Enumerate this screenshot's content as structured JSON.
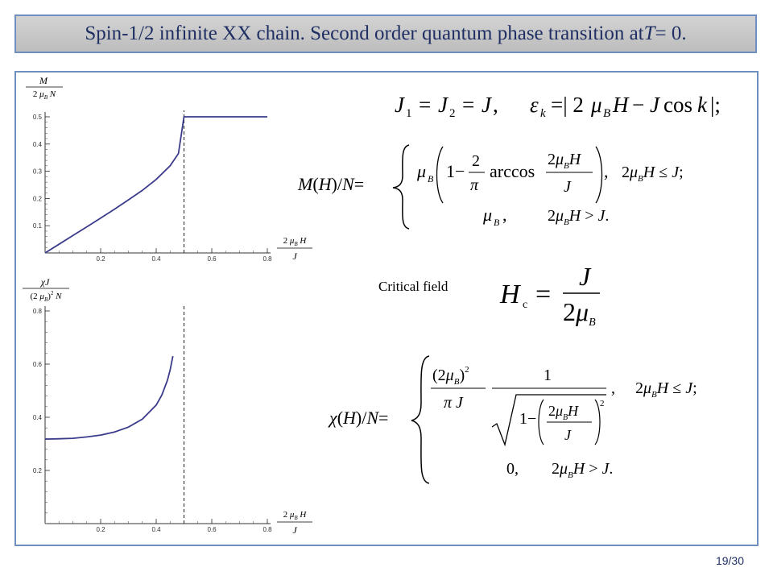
{
  "slide": {
    "title_prefix": "Spin-1/2 infinite XX chain. Second order quantum phase transition at ",
    "title_var": "T",
    "title_suffix": " = 0.",
    "page_number": "19/30"
  },
  "labels": {
    "critical_field": "Critical field"
  },
  "chart_data": [
    {
      "type": "line",
      "ylabel": "M / (2 μB N)",
      "xlabel": "2 μB H / J",
      "xlim": [
        0,
        0.8
      ],
      "ylim": [
        0,
        0.5
      ],
      "x_ticks": [
        "0.2",
        "0.4",
        "0.6",
        "0.8"
      ],
      "y_ticks": [
        "0.1",
        "0.2",
        "0.3",
        "0.4",
        "0.5"
      ],
      "critical_line_x": 0.5,
      "series": [
        {
          "x": [
            0,
            0.05,
            0.1,
            0.15,
            0.2,
            0.25,
            0.3,
            0.35,
            0.4,
            0.45,
            0.48,
            0.5,
            0.6,
            0.7,
            0.8
          ],
          "y": [
            0,
            0.032,
            0.064,
            0.096,
            0.128,
            0.161,
            0.195,
            0.23,
            0.27,
            0.32,
            0.365,
            0.5,
            0.5,
            0.5,
            0.5
          ]
        }
      ]
    },
    {
      "type": "line",
      "ylabel": "χ J / ((2 μB)² N)",
      "xlabel": "2 μB H / J",
      "xlim": [
        0,
        0.8
      ],
      "ylim": [
        0,
        0.8
      ],
      "x_ticks": [
        "0.2",
        "0.4",
        "0.6",
        "0.8"
      ],
      "y_ticks": [
        "0.2",
        "0.4",
        "0.6",
        "0.8"
      ],
      "critical_line_x": 0.5,
      "series": [
        {
          "x": [
            0,
            0.05,
            0.1,
            0.15,
            0.2,
            0.25,
            0.3,
            0.35,
            0.4,
            0.42,
            0.44,
            0.45,
            0.46
          ],
          "y": [
            0.318,
            0.319,
            0.321,
            0.326,
            0.333,
            0.345,
            0.363,
            0.393,
            0.446,
            0.483,
            0.538,
            0.578,
            0.63
          ]
        }
      ]
    }
  ],
  "colors": {
    "curve": "#3b3b8c",
    "title_text": "#1f2f63",
    "frame": "#6f8fc0"
  }
}
